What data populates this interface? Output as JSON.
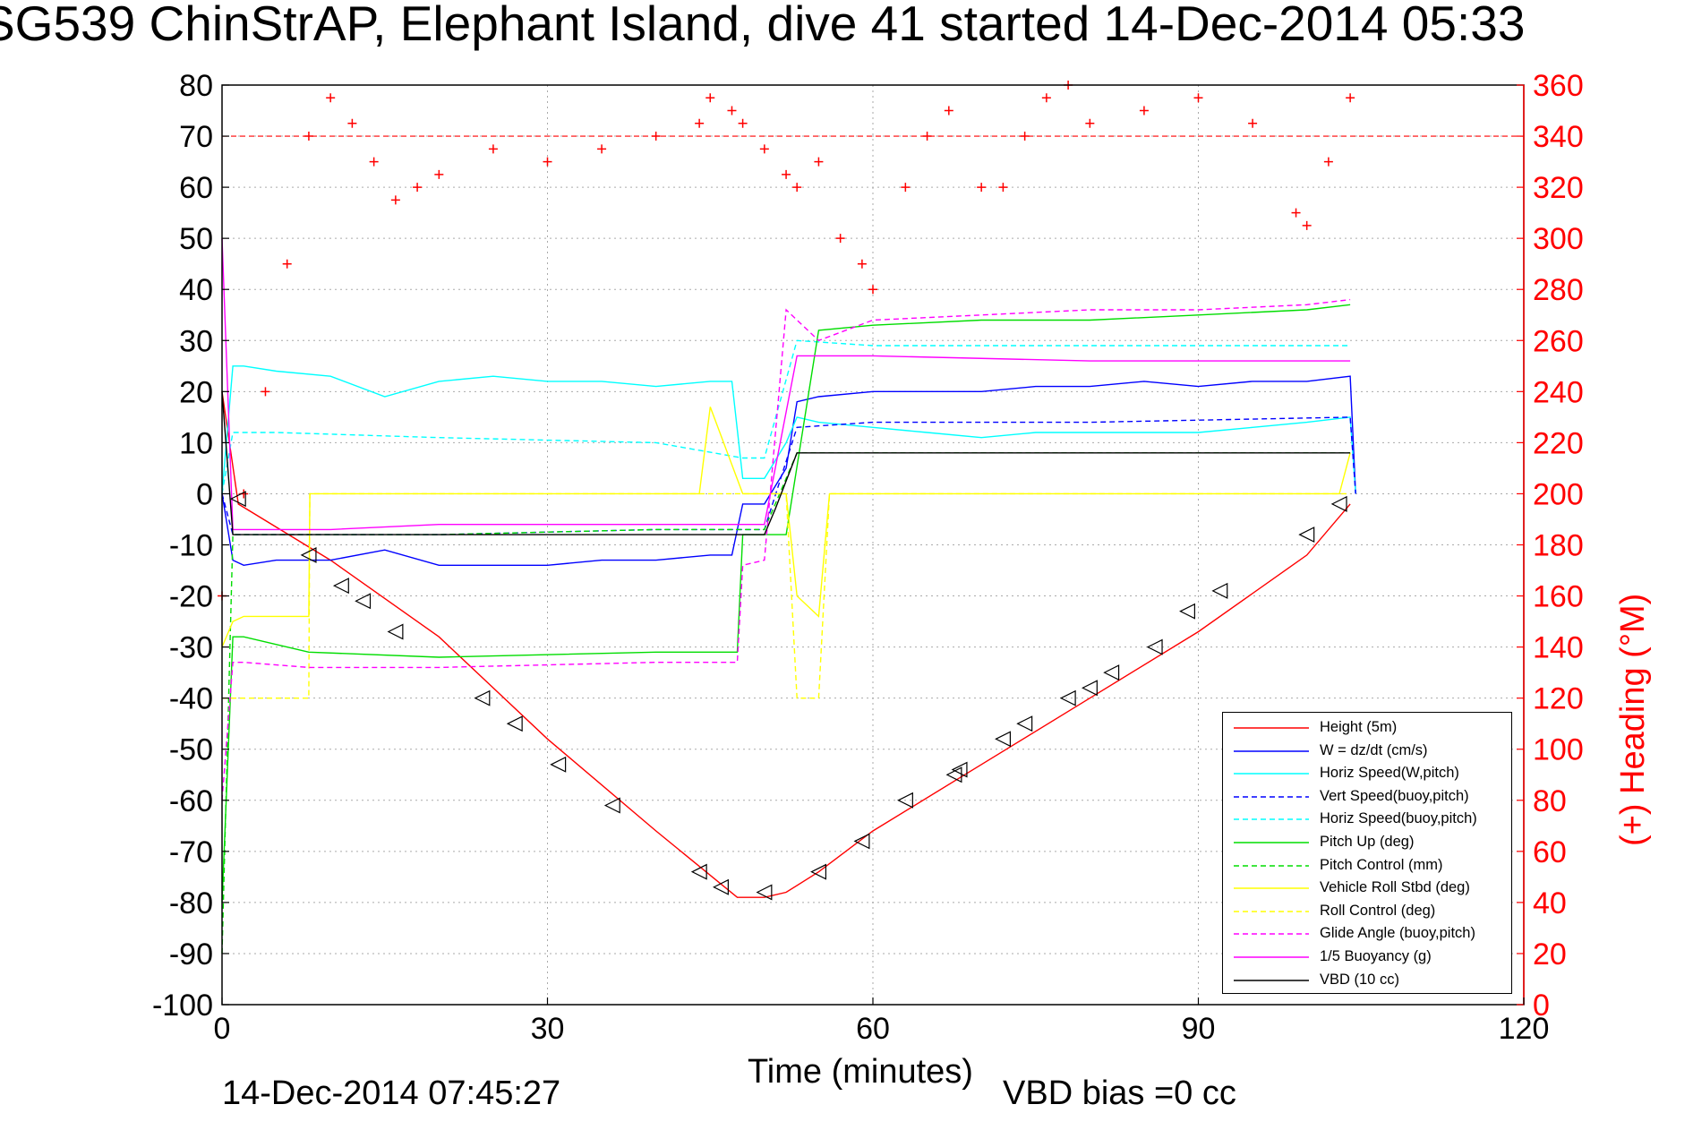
{
  "title": "SG539 ChinStrAP, Elephant Island, dive 41 started 14-Dec-2014 05:33",
  "footer": {
    "timestamp": "14-Dec-2014 07:45:27",
    "vbd_bias": "VBD bias =0 cc"
  },
  "colors": {
    "red": "#ff0000",
    "blue": "#0000ff",
    "cyan": "#00ffff",
    "green": "#00dd00",
    "yellow": "#ffff00",
    "magenta": "#ff00ff",
    "black": "#000000"
  },
  "chart_data": {
    "type": "line",
    "xlabel": "Time (minutes)",
    "ylabel": "",
    "ylabel_right": "(+) Heading (°M)",
    "xlim": [
      0,
      120
    ],
    "ylim": [
      -100,
      80
    ],
    "ylim_right": [
      0,
      360
    ],
    "x_ticks": [
      0,
      30,
      60,
      90,
      120
    ],
    "y_ticks": [
      -100,
      -90,
      -80,
      -70,
      -60,
      -50,
      -40,
      -30,
      -20,
      -10,
      0,
      10,
      20,
      30,
      40,
      50,
      60,
      70,
      80
    ],
    "y_right_ticks": [
      0,
      20,
      40,
      60,
      80,
      100,
      120,
      140,
      160,
      180,
      200,
      220,
      240,
      260,
      280,
      300,
      320,
      340,
      360
    ],
    "grid": true,
    "legend_position": "bottom-right",
    "legend": [
      {
        "label": "Height (5m)",
        "color": "#ff0000",
        "style": "solid"
      },
      {
        "label": "W = dz/dt (cm/s)",
        "color": "#0000ff",
        "style": "solid"
      },
      {
        "label": "Horiz Speed(W,pitch)",
        "color": "#00ffff",
        "style": "solid"
      },
      {
        "label": "Vert Speed(buoy,pitch)",
        "color": "#0000ff",
        "style": "dashed"
      },
      {
        "label": "Horiz Speed(buoy,pitch)",
        "color": "#00ffff",
        "style": "dashed"
      },
      {
        "label": "Pitch Up (deg)",
        "color": "#00dd00",
        "style": "solid"
      },
      {
        "label": "Pitch Control (mm)",
        "color": "#00dd00",
        "style": "dashed"
      },
      {
        "label": "Vehicle Roll Stbd (deg)",
        "color": "#ffff00",
        "style": "solid"
      },
      {
        "label": "Roll Control (deg)",
        "color": "#ffff00",
        "style": "dashed"
      },
      {
        "label": "Glide Angle (buoy,pitch)",
        "color": "#ff00ff",
        "style": "dashed"
      },
      {
        "label": "1/5 Buoyancy (g)",
        "color": "#ff00ff",
        "style": "solid"
      },
      {
        "label": "VBD (10 cc)",
        "color": "#000000",
        "style": "solid"
      }
    ],
    "reference_lines": [
      {
        "axis": "right",
        "value": 340,
        "color": "#ff0000",
        "style": "dashed"
      }
    ],
    "series": [
      {
        "legend_index": 0,
        "x": [
          0,
          1.5,
          10,
          20,
          30,
          40,
          47.5,
          50,
          52,
          55,
          60,
          70,
          80,
          90,
          100,
          104
        ],
        "y": [
          20,
          -2,
          -13,
          -28,
          -48,
          -66,
          -79,
          -79,
          -78,
          -74,
          -66,
          -53,
          -40,
          -27,
          -12,
          -2
        ]
      },
      {
        "legend_index": 1,
        "x": [
          0,
          1,
          2,
          5,
          10,
          15,
          20,
          25,
          30,
          35,
          40,
          45,
          47,
          48,
          50,
          52,
          53,
          55,
          60,
          65,
          70,
          75,
          80,
          85,
          90,
          95,
          100,
          104,
          104.5
        ],
        "y": [
          0,
          -13,
          -14,
          -13,
          -13,
          -11,
          -14,
          -14,
          -14,
          -13,
          -13,
          -12,
          -12,
          -2,
          -2,
          5,
          18,
          19,
          20,
          20,
          20,
          21,
          21,
          22,
          21,
          22,
          22,
          23,
          0
        ]
      },
      {
        "legend_index": 2,
        "x": [
          0,
          1,
          2,
          5,
          10,
          15,
          20,
          25,
          30,
          35,
          40,
          45,
          47,
          48,
          50,
          52,
          53,
          55,
          60,
          65,
          70,
          75,
          80,
          85,
          90,
          95,
          100,
          104,
          104.5
        ],
        "y": [
          0,
          25,
          25,
          24,
          23,
          19,
          22,
          23,
          22,
          22,
          21,
          22,
          22,
          3,
          3,
          10,
          15,
          14,
          13,
          12,
          11,
          12,
          12,
          12,
          12,
          13,
          14,
          15,
          0
        ]
      },
      {
        "legend_index": 3,
        "x": [
          0,
          1,
          5,
          20,
          40,
          48,
          50,
          53,
          60,
          80,
          104,
          104.5
        ],
        "y": [
          0,
          -8,
          -8,
          -8,
          -7,
          -7,
          -7,
          13,
          14,
          14,
          15,
          0
        ]
      },
      {
        "legend_index": 4,
        "x": [
          0,
          1,
          5,
          20,
          40,
          48,
          50,
          53,
          60,
          80,
          104
        ],
        "y": [
          0,
          12,
          12,
          11,
          10,
          7,
          7,
          30,
          29,
          29,
          29
        ]
      },
      {
        "legend_index": 5,
        "x": [
          0,
          1,
          2,
          8,
          20,
          40,
          46,
          47.5,
          48,
          50,
          52,
          55,
          60,
          70,
          80,
          90,
          100,
          104
        ],
        "y": [
          -80,
          -28,
          -28,
          -31,
          -32,
          -31,
          -31,
          -31,
          -8,
          -8,
          -8,
          32,
          33,
          34,
          34,
          35,
          36,
          37
        ]
      },
      {
        "legend_index": 6,
        "x": [
          0,
          1,
          5,
          20,
          40,
          48,
          50,
          53,
          60,
          80,
          104
        ],
        "y": [
          -90,
          -8,
          -8,
          -8,
          -7,
          -7,
          -7,
          8,
          8,
          8,
          8
        ]
      },
      {
        "legend_index": 7,
        "x": [
          0,
          1,
          2,
          8,
          8.1,
          20,
          40,
          44,
          45,
          48,
          52,
          53,
          55,
          56,
          60,
          80,
          100,
          103,
          104
        ],
        "y": [
          -30,
          -25,
          -24,
          -24,
          0,
          0,
          0,
          0,
          17,
          0,
          0,
          -20,
          -24,
          0,
          0,
          0,
          0,
          0,
          8
        ]
      },
      {
        "legend_index": 8,
        "x": [
          0,
          1,
          2,
          8,
          8.1,
          20,
          40,
          44,
          45,
          48,
          52,
          53,
          55,
          56,
          60,
          80,
          100,
          104
        ],
        "y": [
          -40,
          -40,
          -40,
          -40,
          0,
          0,
          0,
          0,
          0,
          0,
          0,
          -40,
          -40,
          0,
          0,
          0,
          0,
          0
        ]
      },
      {
        "legend_index": 9,
        "x": [
          0,
          1,
          2,
          8,
          20,
          40,
          46,
          47.5,
          48,
          50,
          52,
          55,
          60,
          70,
          80,
          90,
          100,
          104
        ],
        "y": [
          -60,
          -33,
          -33,
          -34,
          -34,
          -33,
          -33,
          -33,
          -14,
          -13,
          36,
          30,
          34,
          35,
          36,
          36,
          37,
          38
        ]
      },
      {
        "legend_index": 10,
        "x": [
          0,
          1,
          2,
          10,
          20,
          40,
          48,
          50,
          53,
          60,
          80,
          104
        ],
        "y": [
          50,
          -7,
          -7,
          -7,
          -6,
          -6,
          -6,
          -6,
          27,
          27,
          26,
          26
        ]
      },
      {
        "legend_index": 11,
        "x": [
          0,
          1,
          2,
          10,
          20,
          40,
          48,
          50,
          51,
          53,
          60,
          80,
          104
        ],
        "y": [
          20,
          -8,
          -8,
          -8,
          -8,
          -8,
          -8,
          -8,
          -3,
          8,
          8,
          8,
          8
        ]
      }
    ],
    "heading": {
      "axis": "right",
      "color": "#ff0000",
      "marker": "+",
      "x": [
        0,
        2,
        4,
        6,
        8,
        10,
        12,
        14,
        16,
        18,
        20,
        25,
        30,
        35,
        40,
        44,
        45,
        47,
        48,
        50,
        52,
        53,
        55,
        57,
        59,
        60,
        63,
        65,
        67,
        70,
        72,
        74,
        76,
        78,
        80,
        85,
        90,
        95,
        99,
        100,
        102,
        104
      ],
      "y": [
        160,
        200,
        240,
        290,
        340,
        355,
        345,
        330,
        315,
        320,
        325,
        335,
        330,
        335,
        340,
        345,
        355,
        350,
        345,
        335,
        325,
        320,
        330,
        300,
        290,
        280,
        320,
        340,
        350,
        320,
        320,
        340,
        355,
        360,
        345,
        350,
        355,
        345,
        310,
        305,
        330,
        355
      ]
    },
    "markers": {
      "type": "triangle-left",
      "color": "#000000",
      "x": [
        1.5,
        8,
        11,
        13,
        16,
        24,
        27,
        31,
        36,
        44,
        46,
        50,
        55,
        59,
        63,
        67.5,
        68,
        72,
        74,
        78,
        80,
        82,
        86,
        89,
        92,
        100,
        103
      ],
      "y": [
        -1,
        -12,
        -18,
        -21,
        -27,
        -40,
        -45,
        -53,
        -61,
        -74,
        -77,
        -78,
        -74,
        -68,
        -60,
        -55,
        -54,
        -48,
        -45,
        -40,
        -38,
        -35,
        -30,
        -23,
        -19,
        -8,
        -2
      ]
    }
  }
}
